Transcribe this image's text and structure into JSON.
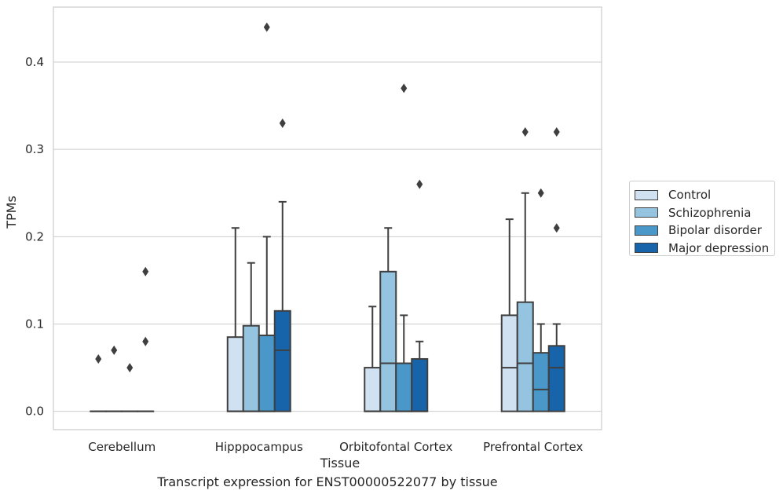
{
  "chart_data": {
    "type": "box",
    "xlabel": "Tissue",
    "ylabel": "TPMs",
    "categories": [
      "Cerebellum",
      "Hipppocampus",
      "Orbitofontal Cortex",
      "Prefrontal Cortex"
    ],
    "yticks": [
      "0.0",
      "0.1",
      "0.2",
      "0.3",
      "0.4"
    ],
    "ylim": [
      -0.021,
      0.463
    ],
    "grid": true,
    "legend_position": "right",
    "series": [
      {
        "name": "Control",
        "color": "#d0e1f2",
        "boxes": [
          {
            "q1": 0,
            "median": 0,
            "q3": 0,
            "whislo": 0,
            "whishi": 0,
            "fliers": [
              0.06
            ]
          },
          {
            "q1": 0,
            "median": 0,
            "q3": 0.085,
            "whislo": 0,
            "whishi": 0.21,
            "fliers": []
          },
          {
            "q1": 0,
            "median": 0,
            "q3": 0.05,
            "whislo": 0,
            "whishi": 0.12,
            "fliers": []
          },
          {
            "q1": 0,
            "median": 0.05,
            "q3": 0.11,
            "whislo": 0,
            "whishi": 0.22,
            "fliers": []
          }
        ]
      },
      {
        "name": "Schizophrenia",
        "color": "#94c4df",
        "boxes": [
          {
            "q1": 0,
            "median": 0,
            "q3": 0,
            "whislo": 0,
            "whishi": 0,
            "fliers": [
              0.07
            ]
          },
          {
            "q1": 0,
            "median": 0,
            "q3": 0.098,
            "whislo": 0,
            "whishi": 0.17,
            "fliers": []
          },
          {
            "q1": 0,
            "median": 0.055,
            "q3": 0.16,
            "whislo": 0,
            "whishi": 0.21,
            "fliers": []
          },
          {
            "q1": 0,
            "median": 0.055,
            "q3": 0.125,
            "whislo": 0,
            "whishi": 0.25,
            "fliers": [
              0.32
            ]
          }
        ]
      },
      {
        "name": "Bipolar disorder",
        "color": "#4a98c9",
        "boxes": [
          {
            "q1": 0,
            "median": 0,
            "q3": 0,
            "whislo": 0,
            "whishi": 0,
            "fliers": [
              0.05
            ]
          },
          {
            "q1": 0,
            "median": 0,
            "q3": 0.087,
            "whislo": 0,
            "whishi": 0.2,
            "fliers": [
              0.44
            ]
          },
          {
            "q1": 0,
            "median": 0,
            "q3": 0.055,
            "whislo": 0,
            "whishi": 0.11,
            "fliers": [
              0.37
            ]
          },
          {
            "q1": 0,
            "median": 0.025,
            "q3": 0.067,
            "whislo": 0,
            "whishi": 0.1,
            "fliers": [
              0.25
            ]
          }
        ]
      },
      {
        "name": "Major depression",
        "color": "#1764ab",
        "boxes": [
          {
            "q1": 0,
            "median": 0,
            "q3": 0,
            "whislo": 0,
            "whishi": 0,
            "fliers": [
              0.08,
              0.16
            ]
          },
          {
            "q1": 0,
            "median": 0.07,
            "q3": 0.115,
            "whislo": 0,
            "whishi": 0.24,
            "fliers": [
              0.33
            ]
          },
          {
            "q1": 0,
            "median": 0,
            "q3": 0.06,
            "whislo": 0,
            "whishi": 0.08,
            "fliers": [
              0.26
            ]
          },
          {
            "q1": 0,
            "median": 0.05,
            "q3": 0.075,
            "whislo": 0,
            "whishi": 0.1,
            "fliers": [
              0.21,
              0.32
            ]
          }
        ]
      }
    ]
  },
  "caption": "Transcript expression for ENST00000522077 by tissue"
}
